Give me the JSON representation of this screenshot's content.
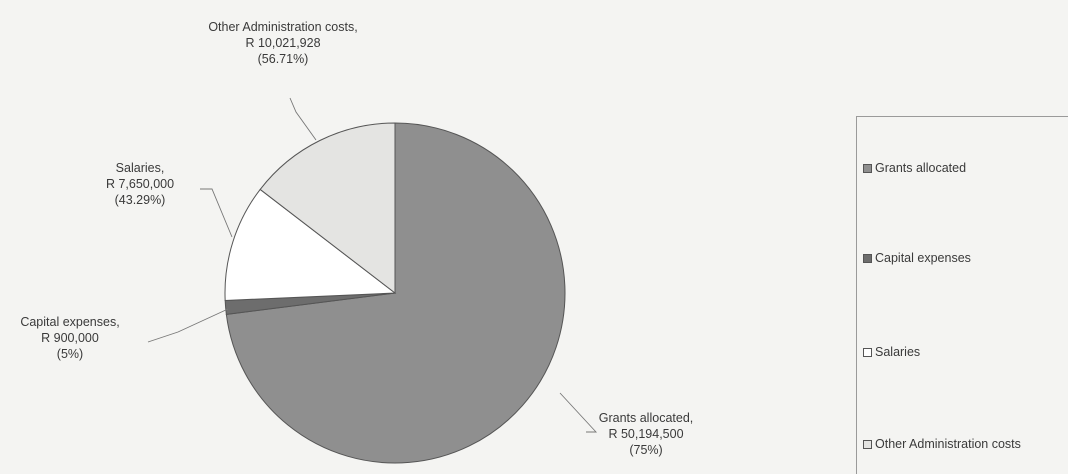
{
  "chart_data": {
    "type": "pie",
    "slices": [
      {
        "name": "Grants allocated",
        "value": 50194500,
        "label_lines": [
          "Grants allocated,",
          "R 50,194,500",
          "(75%)"
        ],
        "color": "#8f8f8f"
      },
      {
        "name": "Capital expenses",
        "value": 900000,
        "label_lines": [
          "Capital expenses,",
          "R 900,000",
          "(5%)"
        ],
        "color": "#6d6d6d"
      },
      {
        "name": "Salaries",
        "value": 7650000,
        "label_lines": [
          "Salaries,",
          "R 7,650,000",
          "(43.29%)"
        ],
        "color": "#ffffff"
      },
      {
        "name": "Other Administration costs",
        "value": 10021928,
        "label_lines": [
          "Other Administration costs,",
          "R 10,021,928",
          "(56.71%)"
        ],
        "color": "#e4e4e2"
      }
    ],
    "legend": {
      "position": "right",
      "items": [
        "Grants allocated",
        "Capital expenses",
        "Salaries",
        "Other Administration costs"
      ]
    }
  }
}
